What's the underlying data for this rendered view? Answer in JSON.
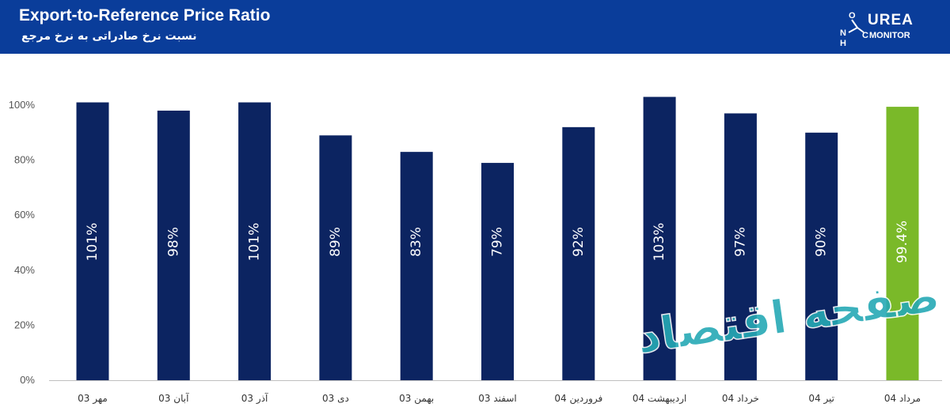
{
  "header": {
    "title": "Export-to-Reference Price Ratio",
    "subtitle": "نسبت نرخ صادراتی به نرخ مرجع",
    "logo_word1": "UREA",
    "logo_word2": "MONITOR",
    "logo_letters": [
      "O",
      "N",
      "H",
      "C"
    ]
  },
  "watermark": {
    "text": "صفحه اقتصاد"
  },
  "colors": {
    "header_bg": "#0a3d9a",
    "bar_navy": "#0c2461",
    "bar_highlight": "#7ab929",
    "watermark": "#26a9b5"
  },
  "chart_data": {
    "type": "bar",
    "categories": [
      "مهر 03",
      "آبان 03",
      "آذر 03",
      "دی 03",
      "بهمن 03",
      "اسفند 03",
      "فروردین 04",
      "اردیبهشت 04",
      "خرداد 04",
      "تیر 04",
      "مرداد 04"
    ],
    "values": [
      101,
      98,
      101,
      89,
      83,
      79,
      92,
      103,
      97,
      90,
      99.4
    ],
    "labels": [
      "101%",
      "98%",
      "101%",
      "89%",
      "83%",
      "79%",
      "92%",
      "103%",
      "97%",
      "90%",
      "99.4%"
    ],
    "highlight_index": 10,
    "yticks": [
      "0%",
      "20%",
      "40%",
      "60%",
      "80%",
      "100%"
    ],
    "ytick_values": [
      0,
      20,
      40,
      60,
      80,
      100
    ],
    "ylim": [
      0,
      110
    ],
    "grid": false,
    "legend": "none"
  }
}
